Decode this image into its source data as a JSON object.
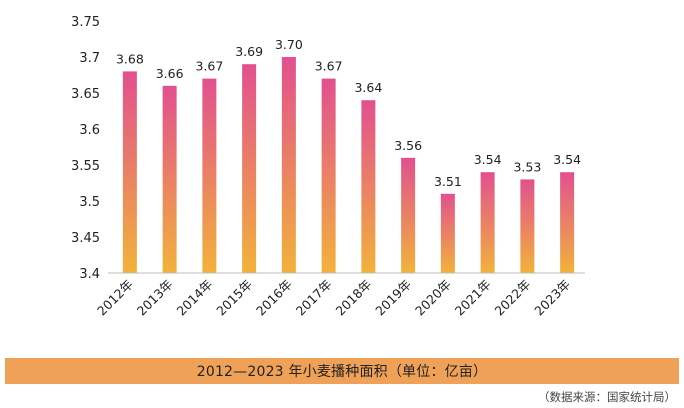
{
  "chart_data": {
    "type": "bar",
    "title": "",
    "xlabel": "",
    "ylabel": "",
    "categories": [
      "2012年",
      "2013年",
      "2014年",
      "2015年",
      "2016年",
      "2017年",
      "2018年",
      "2019年",
      "2020年",
      "2021年",
      "2022年",
      "2023年"
    ],
    "values": [
      3.68,
      3.66,
      3.67,
      3.69,
      3.7,
      3.67,
      3.64,
      3.56,
      3.51,
      3.54,
      3.53,
      3.54
    ],
    "value_labels": [
      "3.68",
      "3.66",
      "3.67",
      "3.69",
      "3.70",
      "3.67",
      "3.64",
      "3.56",
      "3.51",
      "3.54",
      "3.53",
      "3.54"
    ],
    "ylim": [
      3.4,
      3.75
    ],
    "yticks": [
      "3.4",
      "3.45",
      "3.5",
      "3.55",
      "3.6",
      "3.65",
      "3.7",
      "3.75"
    ],
    "grid": false,
    "legend": "none",
    "bar_gradient": {
      "top": "#e2508f",
      "bottom": "#f2b23a"
    }
  },
  "caption": "2012—2023 年小麦播种面积（单位：亿亩）",
  "source": "（数据来源：国家统计局）"
}
